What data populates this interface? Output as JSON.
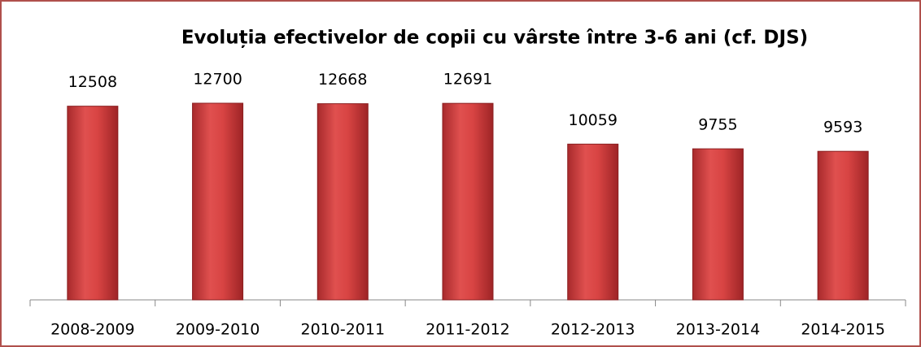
{
  "chart_data": {
    "type": "bar",
    "title": "Evoluția efectivelor de copii cu vârste între 3-6 ani (cf. DJS)",
    "categories": [
      "2008-2009",
      "2009-2010",
      "2010-2011",
      "2011-2012",
      "2012-2013",
      "2013-2014",
      "2014-2015"
    ],
    "values": [
      12508,
      12700,
      12668,
      12691,
      10059,
      9755,
      9593
    ],
    "color": "#c0393b"
  }
}
